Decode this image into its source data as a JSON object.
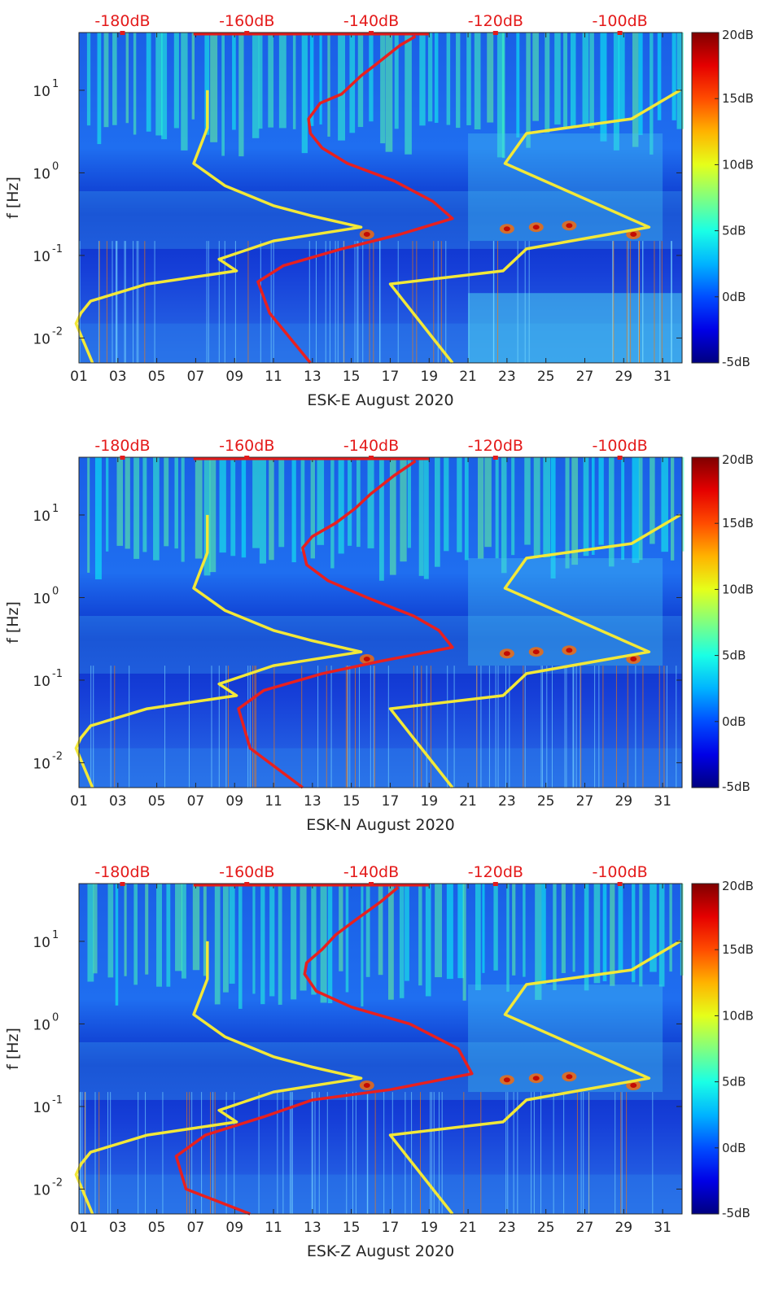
{
  "chart_data": [
    {
      "type": "heatmap",
      "xlabel": "ESK-E August 2020",
      "ylabel": "f [Hz]",
      "x_tick_labels": [
        "01",
        "03",
        "05",
        "07",
        "09",
        "11",
        "13",
        "15",
        "17",
        "19",
        "21",
        "23",
        "25",
        "27",
        "29",
        "31"
      ],
      "xlim_days": [
        1,
        32
      ],
      "y_scale": "log",
      "ylim": [
        0.005,
        50
      ],
      "y_ticks": [
        {
          "value": 0.01,
          "base": "10",
          "exp": "-2"
        },
        {
          "value": 0.1,
          "base": "10",
          "exp": "-1"
        },
        {
          "value": 1,
          "base": "10",
          "exp": "0"
        },
        {
          "value": 10,
          "base": "10",
          "exp": "1"
        }
      ],
      "top_axis": {
        "tick_labels": [
          "-180dB",
          "-160dB",
          "-140dB",
          "-120dB",
          "-100dB"
        ],
        "values": [
          -180,
          -160,
          -140,
          -120,
          -100
        ],
        "range": [
          -187,
          -90
        ]
      },
      "colorbar": {
        "tick_labels": [
          "20dB",
          "15dB",
          "10dB",
          "5dB",
          "0dB",
          "-5dB"
        ],
        "values": [
          20,
          15,
          10,
          5,
          0,
          -5
        ],
        "range": [
          -5,
          20
        ]
      },
      "series": [
        {
          "color": "#f2e838",
          "points": [
            [
              7.6,
              10
            ],
            [
              7.6,
              3.5
            ],
            [
              6.9,
              1.3
            ],
            [
              8.5,
              0.7
            ],
            [
              11,
              0.4
            ],
            [
              13,
              0.3
            ],
            [
              15.5,
              0.22
            ],
            [
              11,
              0.15
            ],
            [
              8.2,
              0.09
            ],
            [
              9.1,
              0.065
            ],
            [
              4.5,
              0.045
            ],
            [
              1.6,
              0.028
            ],
            [
              1.1,
              0.02
            ],
            [
              0.85,
              0.015
            ],
            [
              1.7,
              0.005
            ]
          ]
        },
        {
          "color": "#f2e838",
          "points": [
            [
              31.9,
              10
            ],
            [
              29.4,
              4.5
            ],
            [
              24,
              3
            ],
            [
              22.9,
              1.3
            ],
            [
              30.3,
              0.22
            ],
            [
              24,
              0.12
            ],
            [
              22.8,
              0.065
            ],
            [
              17,
              0.045
            ],
            [
              20.2,
              0.005
            ]
          ]
        },
        {
          "color": "#e8201f",
          "points": [
            [
              18.3,
              45
            ],
            [
              17.5,
              35
            ],
            [
              16.2,
              20
            ],
            [
              15.5,
              15
            ],
            [
              14.5,
              9
            ],
            [
              13.4,
              7
            ],
            [
              12.8,
              4.5
            ],
            [
              12.9,
              3
            ],
            [
              13.5,
              2
            ],
            [
              14.8,
              1.3
            ],
            [
              17.2,
              0.8
            ],
            [
              19.2,
              0.45
            ],
            [
              20.2,
              0.28
            ],
            [
              17.5,
              0.18
            ],
            [
              14.5,
              0.12
            ],
            [
              11.5,
              0.075
            ],
            [
              10.2,
              0.048
            ],
            [
              10.8,
              0.02
            ],
            [
              12.9,
              0.005
            ]
          ]
        }
      ]
    },
    {
      "type": "heatmap",
      "xlabel": "ESK-N August 2020",
      "ylabel": "f [Hz]",
      "x_tick_labels": [
        "01",
        "03",
        "05",
        "07",
        "09",
        "11",
        "13",
        "15",
        "17",
        "19",
        "21",
        "23",
        "25",
        "27",
        "29",
        "31"
      ],
      "xlim_days": [
        1,
        32
      ],
      "y_scale": "log",
      "ylim": [
        0.005,
        50
      ],
      "y_ticks": [
        {
          "value": 0.01,
          "base": "10",
          "exp": "-2"
        },
        {
          "value": 0.1,
          "base": "10",
          "exp": "-1"
        },
        {
          "value": 1,
          "base": "10",
          "exp": "0"
        },
        {
          "value": 10,
          "base": "10",
          "exp": "1"
        }
      ],
      "top_axis": {
        "tick_labels": [
          "-180dB",
          "-160dB",
          "-140dB",
          "-120dB",
          "-100dB"
        ],
        "values": [
          -180,
          -160,
          -140,
          -120,
          -100
        ],
        "range": [
          -187,
          -90
        ]
      },
      "colorbar": {
        "tick_labels": [
          "20dB",
          "15dB",
          "10dB",
          "5dB",
          "0dB",
          "-5dB"
        ],
        "values": [
          20,
          15,
          10,
          5,
          0,
          -5
        ],
        "range": [
          -5,
          20
        ]
      },
      "series": [
        {
          "color": "#f2e838",
          "points": [
            [
              7.6,
              10
            ],
            [
              7.6,
              3.5
            ],
            [
              6.9,
              1.3
            ],
            [
              8.5,
              0.7
            ],
            [
              11,
              0.4
            ],
            [
              13,
              0.3
            ],
            [
              15.5,
              0.22
            ],
            [
              11,
              0.15
            ],
            [
              8.2,
              0.09
            ],
            [
              9.1,
              0.065
            ],
            [
              4.5,
              0.045
            ],
            [
              1.6,
              0.028
            ],
            [
              1.1,
              0.02
            ],
            [
              0.85,
              0.015
            ],
            [
              1.7,
              0.005
            ]
          ]
        },
        {
          "color": "#f2e838",
          "points": [
            [
              31.9,
              10
            ],
            [
              29.4,
              4.5
            ],
            [
              24,
              3
            ],
            [
              22.9,
              1.3
            ],
            [
              30.3,
              0.22
            ],
            [
              24,
              0.12
            ],
            [
              22.8,
              0.065
            ],
            [
              17,
              0.045
            ],
            [
              20.2,
              0.005
            ]
          ]
        },
        {
          "color": "#e8201f",
          "points": [
            [
              18.3,
              45
            ],
            [
              17.2,
              30
            ],
            [
              16,
              18
            ],
            [
              15.2,
              12
            ],
            [
              14.2,
              8
            ],
            [
              13,
              5.5
            ],
            [
              12.5,
              4
            ],
            [
              12.7,
              2.5
            ],
            [
              13.8,
              1.6
            ],
            [
              15.8,
              1
            ],
            [
              18.2,
              0.6
            ],
            [
              19.5,
              0.4
            ],
            [
              20.2,
              0.25
            ],
            [
              16.5,
              0.17
            ],
            [
              13.5,
              0.12
            ],
            [
              10.5,
              0.075
            ],
            [
              9.2,
              0.045
            ],
            [
              9.8,
              0.015
            ],
            [
              12.5,
              0.005
            ]
          ]
        }
      ]
    },
    {
      "type": "heatmap",
      "xlabel": "ESK-Z August 2020",
      "ylabel": "f [Hz]",
      "x_tick_labels": [
        "01",
        "03",
        "05",
        "07",
        "09",
        "11",
        "13",
        "15",
        "17",
        "19",
        "21",
        "23",
        "25",
        "27",
        "29",
        "31"
      ],
      "xlim_days": [
        1,
        32
      ],
      "y_scale": "log",
      "ylim": [
        0.005,
        50
      ],
      "y_ticks": [
        {
          "value": 0.01,
          "base": "10",
          "exp": "-2"
        },
        {
          "value": 0.1,
          "base": "10",
          "exp": "-1"
        },
        {
          "value": 1,
          "base": "10",
          "exp": "0"
        },
        {
          "value": 10,
          "base": "10",
          "exp": "1"
        }
      ],
      "top_axis": {
        "tick_labels": [
          "-180dB",
          "-160dB",
          "-140dB",
          "-120dB",
          "-100dB"
        ],
        "values": [
          -180,
          -160,
          -140,
          -120,
          -100
        ],
        "range": [
          -187,
          -90
        ]
      },
      "colorbar": {
        "tick_labels": [
          "20dB",
          "15dB",
          "10dB",
          "5dB",
          "0dB",
          "-5dB"
        ],
        "values": [
          20,
          15,
          10,
          5,
          0,
          -5
        ],
        "range": [
          -5,
          20
        ]
      },
      "series": [
        {
          "color": "#f2e838",
          "points": [
            [
              7.6,
              10
            ],
            [
              7.6,
              3.5
            ],
            [
              6.9,
              1.3
            ],
            [
              8.5,
              0.7
            ],
            [
              11,
              0.4
            ],
            [
              13,
              0.3
            ],
            [
              15.5,
              0.22
            ],
            [
              11,
              0.15
            ],
            [
              8.2,
              0.09
            ],
            [
              9.1,
              0.065
            ],
            [
              4.5,
              0.045
            ],
            [
              1.6,
              0.028
            ],
            [
              1.1,
              0.02
            ],
            [
              0.85,
              0.015
            ],
            [
              1.7,
              0.005
            ]
          ]
        },
        {
          "color": "#f2e838",
          "points": [
            [
              31.9,
              10
            ],
            [
              29.4,
              4.5
            ],
            [
              24,
              3
            ],
            [
              22.9,
              1.3
            ],
            [
              30.3,
              0.22
            ],
            [
              24,
              0.12
            ],
            [
              22.8,
              0.065
            ],
            [
              17,
              0.045
            ],
            [
              20.2,
              0.005
            ]
          ]
        },
        {
          "color": "#e8201f",
          "points": [
            [
              17.4,
              45
            ],
            [
              16.5,
              30
            ],
            [
              15.2,
              18
            ],
            [
              14.2,
              12
            ],
            [
              13.5,
              8
            ],
            [
              12.7,
              5.5
            ],
            [
              12.6,
              4
            ],
            [
              13.2,
              2.5
            ],
            [
              15,
              1.6
            ],
            [
              18,
              1
            ],
            [
              20.5,
              0.5
            ],
            [
              21.2,
              0.25
            ],
            [
              17,
              0.16
            ],
            [
              13,
              0.12
            ],
            [
              10.5,
              0.075
            ],
            [
              7.5,
              0.045
            ],
            [
              6,
              0.025
            ],
            [
              6.5,
              0.01
            ],
            [
              9.8,
              0.005
            ]
          ]
        }
      ]
    }
  ]
}
